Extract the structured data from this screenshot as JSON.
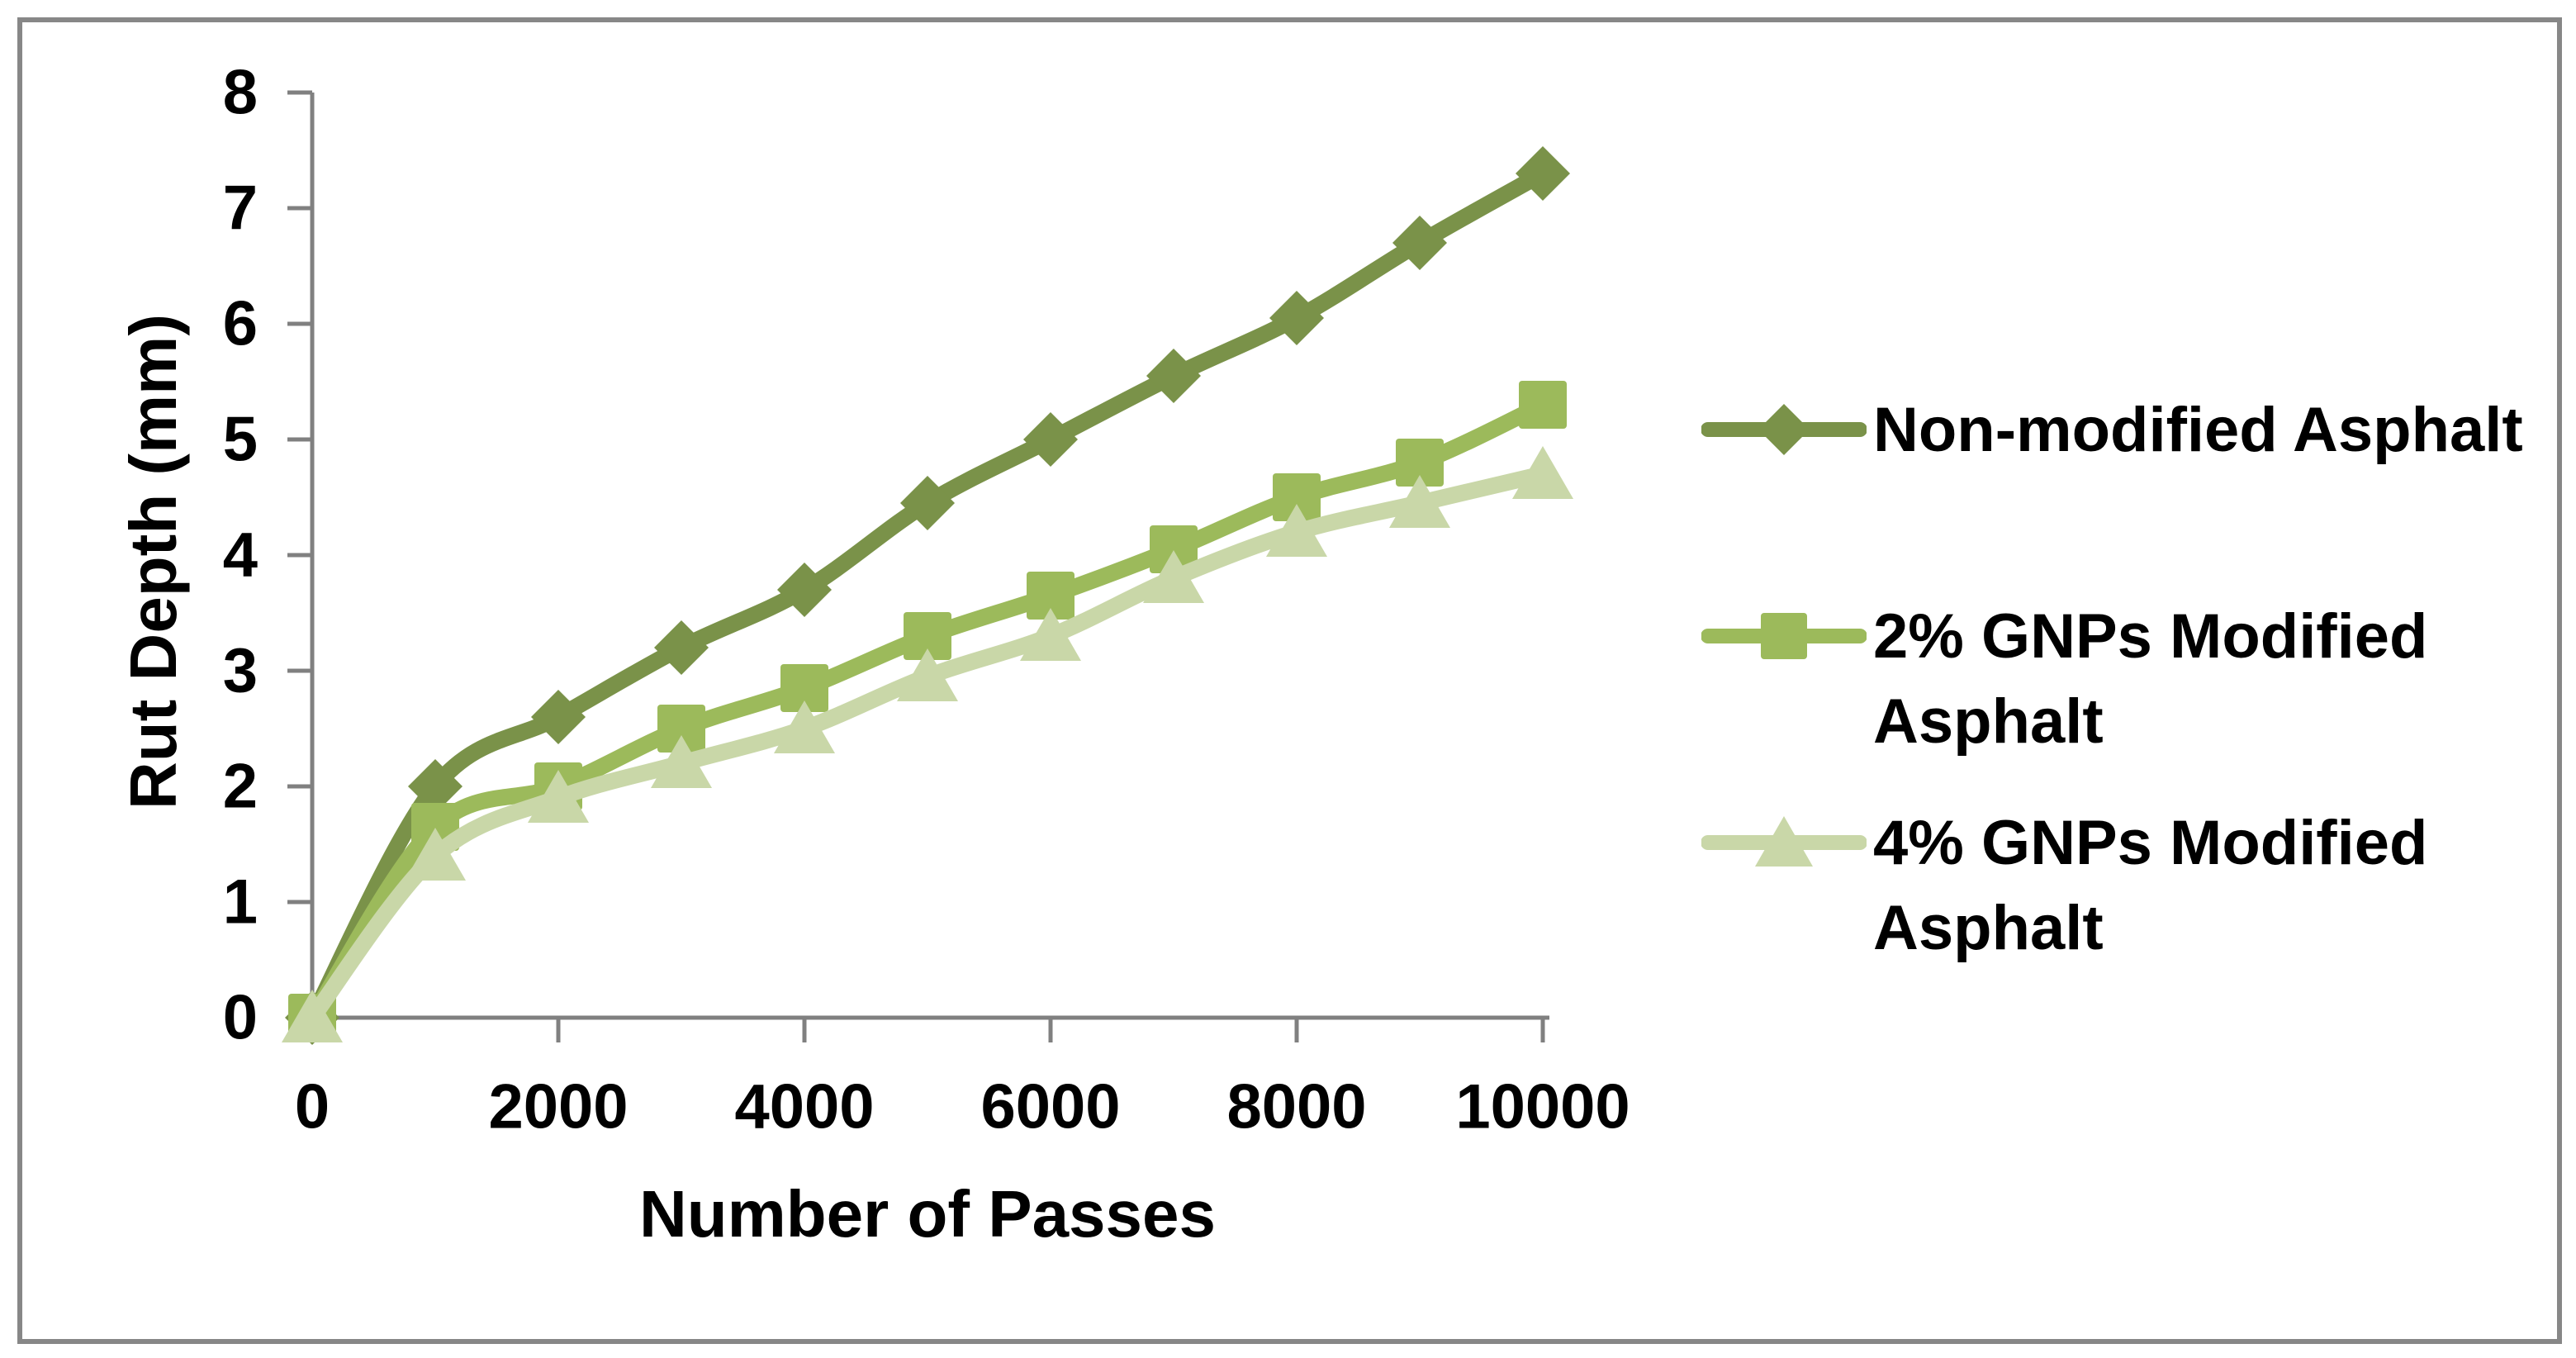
{
  "frame": {
    "background": "#ffffff",
    "border_color": "#878787",
    "axis_color": "#808080",
    "text_color": "#000000"
  },
  "chart_data": {
    "type": "line",
    "title": "",
    "xlabel": "Number of Passes",
    "ylabel": "Rut Depth (mm)",
    "xlim": [
      0,
      10000
    ],
    "ylim": [
      0,
      8
    ],
    "x_ticks": [
      0,
      2000,
      4000,
      6000,
      8000,
      10000
    ],
    "y_ticks": [
      0,
      1,
      2,
      3,
      4,
      5,
      6,
      7,
      8
    ],
    "grid": false,
    "legend_position": "right",
    "line_smoothing": true,
    "x": [
      0,
      1000,
      2000,
      3000,
      4000,
      5000,
      6000,
      7000,
      8000,
      9000,
      10000
    ],
    "series": [
      {
        "name": "Non-modified Asphalt",
        "marker": "diamond",
        "color": "#7a9249",
        "values": [
          0,
          2.0,
          2.6,
          3.2,
          3.7,
          4.45,
          5.0,
          5.55,
          6.05,
          6.7,
          7.3
        ]
      },
      {
        "name": "2% GNPs Modified Asphalt",
        "marker": "square",
        "color": "#9cba5b",
        "values": [
          0,
          1.65,
          2.0,
          2.5,
          2.85,
          3.3,
          3.65,
          4.05,
          4.5,
          4.8,
          5.3
        ]
      },
      {
        "name": "4% GNPs Modified Asphalt",
        "marker": "triangle",
        "color": "#c9d7a8",
        "values": [
          0,
          1.4,
          1.9,
          2.2,
          2.5,
          2.95,
          3.3,
          3.8,
          4.2,
          4.45,
          4.7
        ]
      }
    ]
  }
}
